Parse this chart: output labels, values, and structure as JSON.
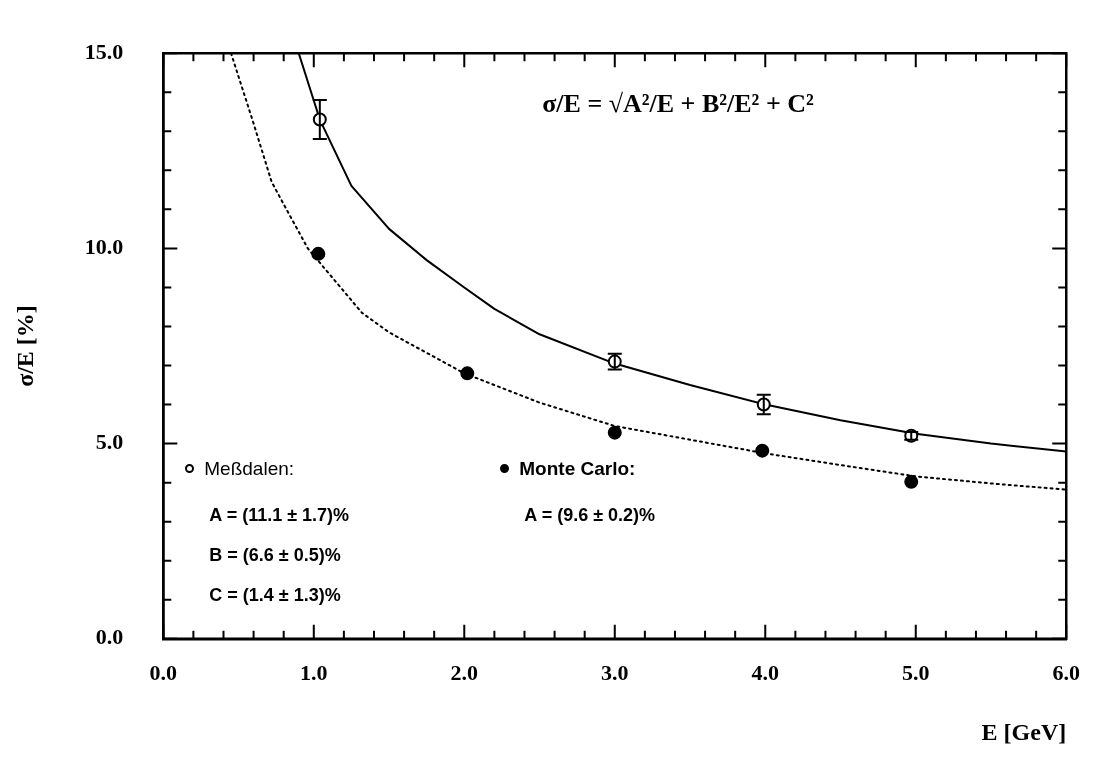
{
  "chart_data": {
    "type": "scatter",
    "xlabel": "E [GeV]",
    "ylabel": "σ/E [%]",
    "xlim": [
      0,
      6
    ],
    "ylim": [
      0,
      15
    ],
    "xticks": [
      {
        "value": 0,
        "label": "0.0"
      },
      {
        "value": 0.2,
        "label": null
      },
      {
        "value": 0.4,
        "label": null
      },
      {
        "value": 0.6,
        "label": null
      },
      {
        "value": 0.8,
        "label": null
      },
      {
        "value": 1,
        "label": "1.0"
      },
      {
        "value": 1.2,
        "label": null
      },
      {
        "value": 1.4,
        "label": null
      },
      {
        "value": 1.6,
        "label": null
      },
      {
        "value": 1.8,
        "label": null
      },
      {
        "value": 2,
        "label": "2.0"
      },
      {
        "value": 2.2,
        "label": null
      },
      {
        "value": 2.4,
        "label": null
      },
      {
        "value": 2.6,
        "label": null
      },
      {
        "value": 2.8,
        "label": null
      },
      {
        "value": 3,
        "label": "3.0"
      },
      {
        "value": 3.2,
        "label": null
      },
      {
        "value": 3.4,
        "label": null
      },
      {
        "value": 3.6,
        "label": null
      },
      {
        "value": 3.8,
        "label": null
      },
      {
        "value": 4,
        "label": "4.0"
      },
      {
        "value": 4.2,
        "label": null
      },
      {
        "value": 4.4,
        "label": null
      },
      {
        "value": 4.6,
        "label": null
      },
      {
        "value": 4.8,
        "label": null
      },
      {
        "value": 5,
        "label": "5.0"
      },
      {
        "value": 5.2,
        "label": null
      },
      {
        "value": 5.4,
        "label": null
      },
      {
        "value": 5.6,
        "label": null
      },
      {
        "value": 5.8,
        "label": null
      },
      {
        "value": 6,
        "label": "6.0"
      }
    ],
    "yticks": [
      {
        "value": 0,
        "label": "0.0"
      },
      {
        "value": 1,
        "label": null
      },
      {
        "value": 2,
        "label": null
      },
      {
        "value": 3,
        "label": null
      },
      {
        "value": 4,
        "label": null
      },
      {
        "value": 5,
        "label": "5.0"
      },
      {
        "value": 6,
        "label": null
      },
      {
        "value": 7,
        "label": null
      },
      {
        "value": 8,
        "label": null
      },
      {
        "value": 9,
        "label": null
      },
      {
        "value": 10,
        "label": "10.0"
      },
      {
        "value": 11,
        "label": null
      },
      {
        "value": 12,
        "label": null
      },
      {
        "value": 13,
        "label": null
      },
      {
        "value": 14,
        "label": null
      },
      {
        "value": 15,
        "label": "15.0"
      }
    ],
    "grid": false,
    "legend": "bottom left",
    "series": [
      {
        "name": "Meßdalen:",
        "type": "scatter",
        "color": "#000000",
        "marker": "circle",
        "x": [
          1.04,
          3.0,
          3.99,
          4.97
        ],
        "values": [
          13.3,
          7.1,
          6.0,
          5.2
        ],
        "errors": [
          0.5,
          0.2,
          0.25,
          0.1
        ]
      },
      {
        "name": "Monte Carlo:",
        "type": "scatter",
        "color": "#000000",
        "marker": "circle",
        "x": [
          1.03,
          2.02,
          3.0,
          3.98,
          4.97
        ],
        "values": [
          9.86,
          6.8,
          5.28,
          4.82,
          4.02
        ]
      },
      {
        "type": "line",
        "color": "#000000",
        "marker": "none",
        "line_style": "solid",
        "x": [
          0.9,
          1.04,
          1.25,
          1.5,
          1.75,
          2.0,
          2.2,
          2.5,
          3.0,
          3.5,
          4.0,
          4.5,
          5.0,
          5.5,
          6.0
        ],
        "values": [
          15,
          13.3,
          11.6,
          10.5,
          9.7,
          9.0,
          8.45,
          7.8,
          7.05,
          6.5,
          6.0,
          5.6,
          5.25,
          5.0,
          4.8
        ]
      },
      {
        "type": "line",
        "color": "#000000",
        "marker": "none",
        "line_style": "dotted",
        "x": [
          0.45,
          0.6,
          0.72,
          0.96,
          1.32,
          1.5,
          2.0,
          2.5,
          3.0,
          3.5,
          4.0,
          4.5,
          5.0,
          5.5,
          6.0
        ],
        "values": [
          15,
          13.2,
          11.7,
          10.0,
          8.35,
          7.85,
          6.8,
          6.05,
          5.45,
          5.1,
          4.75,
          4.45,
          4.16,
          3.98,
          3.82
        ]
      }
    ],
    "annotations": [
      "σ/E = √A²/E + B²/E² + C²",
      "A = (11.1 ± 1.7)%",
      "B = (6.6 ± 0.5)%",
      "C = (1.4 ± 1.3)%",
      "A = (9.6 ± 0.2)%"
    ]
  }
}
